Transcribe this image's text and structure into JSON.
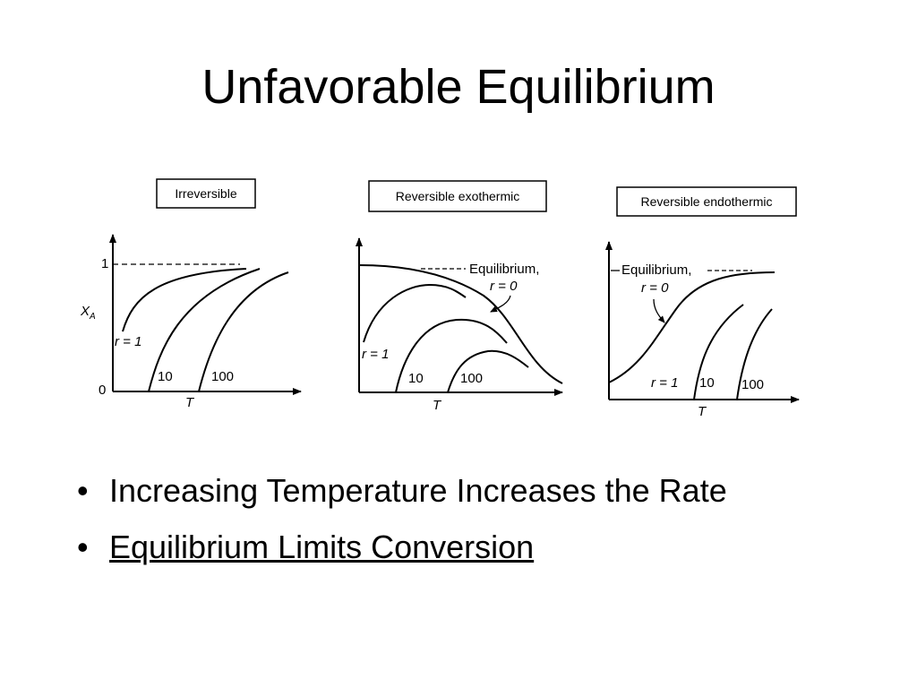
{
  "title": "Unfavorable Equilibrium",
  "figure": {
    "panels": [
      {
        "title": "Irreversible",
        "y_axis_label": "X",
        "y_axis_subscript": "A",
        "y_tick_top": "1",
        "y_tick_bottom": "0",
        "x_axis_label": "T",
        "curve_labels": [
          "r = 1",
          "10",
          "100"
        ]
      },
      {
        "title": "Reversible exothermic",
        "equilibrium_label": "Equilibrium,",
        "equilibrium_sub": "r = 0",
        "x_axis_label": "T",
        "curve_labels": [
          "r = 1",
          "10",
          "100"
        ]
      },
      {
        "title": "Reversible endothermic",
        "equilibrium_label": "Equilibrium,",
        "equilibrium_sub": "r = 0",
        "x_axis_label": "T",
        "curve_labels": [
          "r = 1",
          "10",
          "100"
        ]
      }
    ]
  },
  "bullets": [
    {
      "text": "Increasing Temperature Increases the Rate",
      "underlined": false
    },
    {
      "text": "Equilibrium Limits Conversion",
      "underlined": true
    }
  ],
  "bullet_symbol": "•"
}
